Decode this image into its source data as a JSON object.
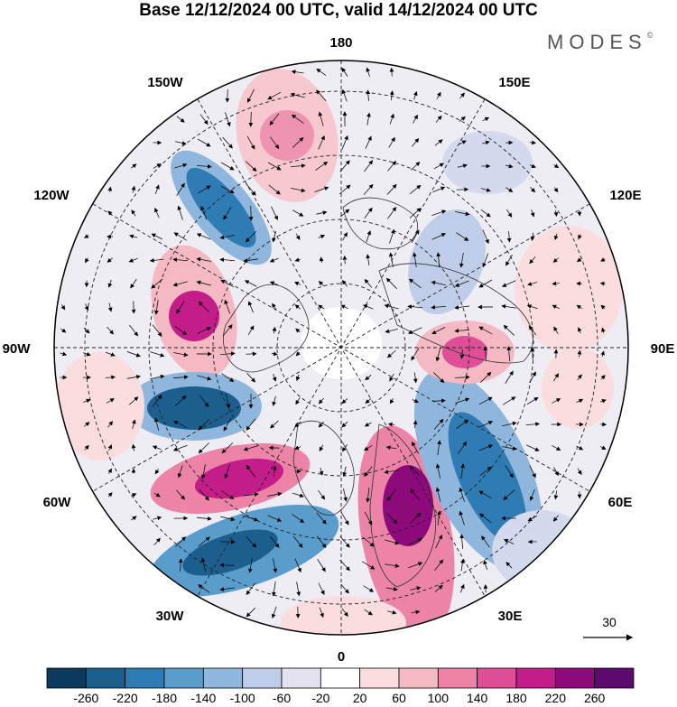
{
  "title": "Base 12/12/2024 00 UTC, valid 14/12/2024 00 UTC",
  "brand": "MODES",
  "brand_mark": "©",
  "longitude_labels": {
    "top": "180",
    "top_left": "150W",
    "top_right": "150E",
    "upper_left": "120W",
    "upper_right": "120E",
    "left": "90W",
    "right": "90E",
    "lower_left": "60W",
    "lower_right": "60E",
    "bottom_left": "30W",
    "bottom_right": "30E",
    "bottom": "0"
  },
  "reference_vector": {
    "label": "30"
  },
  "colorbar": {
    "ticks": [
      "-260",
      "-220",
      "-180",
      "-140",
      "-100",
      "-60",
      "-20",
      "20",
      "60",
      "100",
      "140",
      "180",
      "220",
      "260"
    ],
    "colors": [
      "#0c3a5c",
      "#1c5f8e",
      "#2f7bb3",
      "#5a9ccc",
      "#8fb6dc",
      "#c0cde8",
      "#e2e2f0",
      "#ffffff",
      "#fbdde0",
      "#f5b9c4",
      "#ec84a8",
      "#de4f98",
      "#c21d88",
      "#8e0a7c",
      "#5c0a6e"
    ]
  },
  "colors": {
    "negative_strong": "#1c5f8e",
    "negative_weak": "#c0cde8",
    "positive_weak": "#fbdde0",
    "positive_strong": "#c21d88",
    "background_disk": "#ececf2"
  }
}
